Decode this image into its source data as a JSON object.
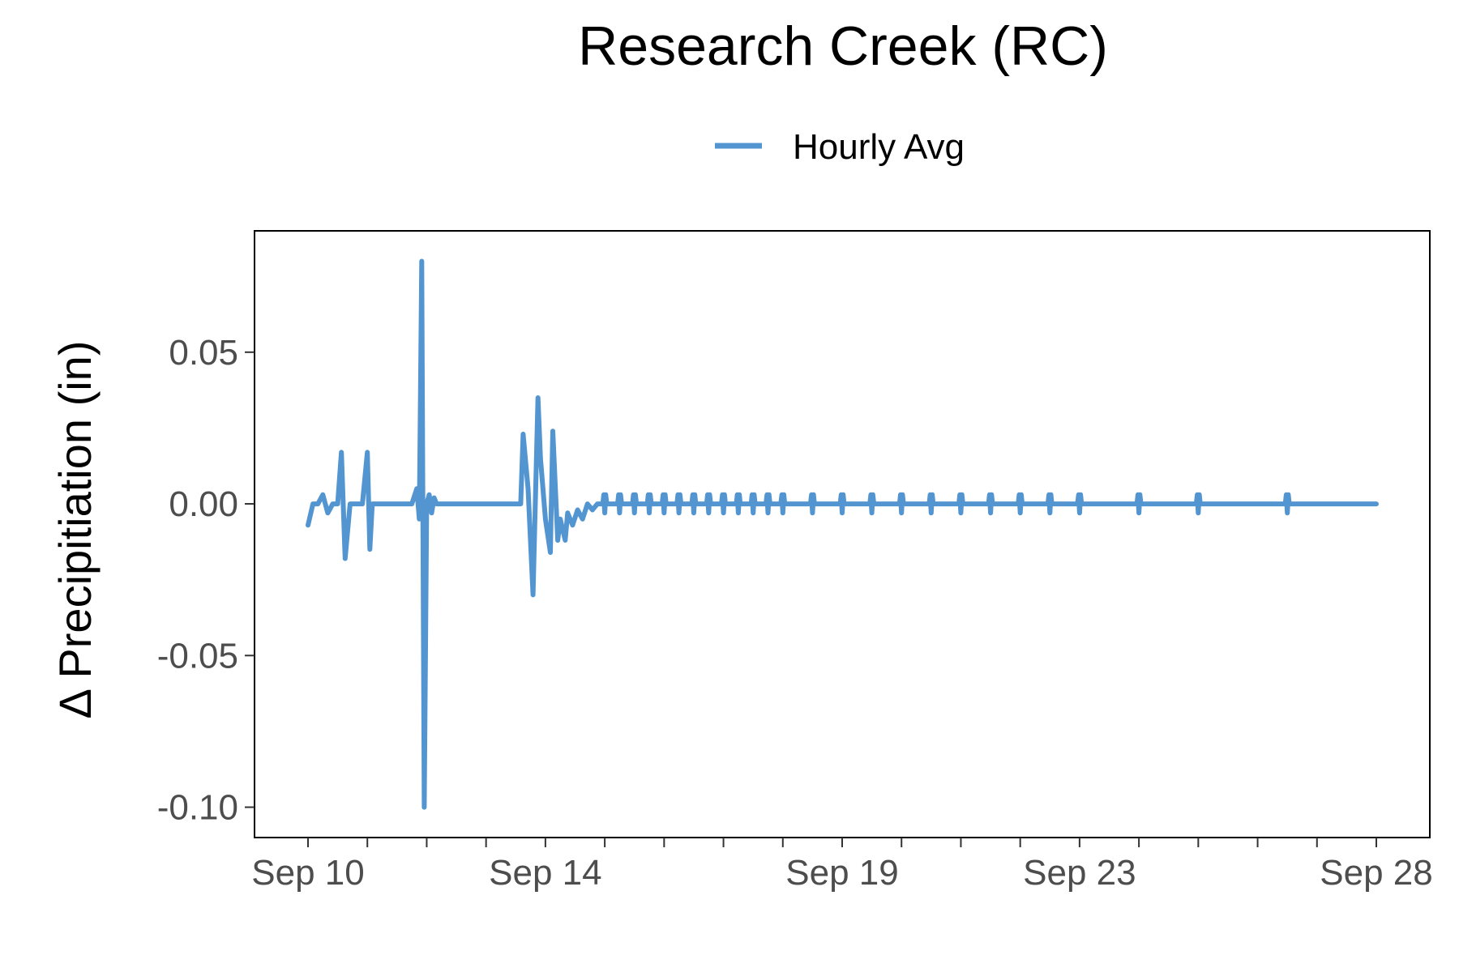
{
  "chart_data": {
    "type": "line",
    "title": "Research Creek (RC)",
    "xlabel": "",
    "ylabel": "Δ Precipitiation (in)",
    "legend": {
      "position": "top",
      "entries": [
        "Hourly Avg"
      ]
    },
    "grid": false,
    "xlim": [
      "Sep 10",
      "Sep 28"
    ],
    "ylim": [
      -0.11,
      0.09
    ],
    "xticks": [
      "Sep 10",
      "Sep 14",
      "Sep 19",
      "Sep 23",
      "Sep 28"
    ],
    "yticks": [
      "0.05",
      "0.00",
      "-0.05",
      "-0.10"
    ],
    "ytick_values": [
      0.05,
      0.0,
      -0.05,
      -0.1
    ],
    "series": [
      {
        "name": "Hourly Avg",
        "color": "#5395d0",
        "x": [
          "Sep 10 00:00",
          "Sep 10 02:00",
          "Sep 10 04:00",
          "Sep 10 06:00",
          "Sep 10 08:00",
          "Sep 10 10:00",
          "Sep 10 12:00",
          "Sep 10 13:30",
          "Sep 10 15:00",
          "Sep 10 17:00",
          "Sep 10 22:00",
          "Sep 11 00:00",
          "Sep 11 01:00",
          "Sep 11 02:00",
          "Sep 11 03:00",
          "Sep 11 04:00",
          "Sep 11 18:00",
          "Sep 11 20:00",
          "Sep 11 21:00",
          "Sep 11 22:00",
          "Sep 11 23:00",
          "Sep 12 00:00",
          "Sep 12 01:00",
          "Sep 12 02:00",
          "Sep 12 03:00",
          "Sep 12 04:00",
          "Sep 12 05:00",
          "Sep 12 06:00",
          "Sep 12 07:00",
          "Sep 13 14:00",
          "Sep 13 15:00",
          "Sep 13 17:00",
          "Sep 13 19:00",
          "Sep 13 21:00",
          "Sep 13 22:00",
          "Sep 14 00:00",
          "Sep 14 02:00",
          "Sep 14 03:00",
          "Sep 14 05:00",
          "Sep 14 06:00",
          "Sep 14 08:00",
          "Sep 14 09:00",
          "Sep 14 11:00",
          "Sep 14 13:00",
          "Sep 14 15:00",
          "Sep 14 17:00",
          "Sep 14 19:00",
          "Sep 14 21:00",
          "Sep 14 23:00",
          "Sep 28 00:00"
        ],
        "y": [
          -0.007,
          0.0,
          0.0,
          0.003,
          -0.003,
          0.0,
          0.0,
          0.017,
          -0.018,
          0.0,
          0.0,
          0.017,
          -0.015,
          0.0,
          0.0,
          0.0,
          0.0,
          0.005,
          -0.005,
          0.08,
          -0.1,
          0.0,
          0.003,
          -0.003,
          0.002,
          0.0,
          0.0,
          0.0,
          0.0,
          0.0,
          0.023,
          0.005,
          -0.03,
          0.035,
          0.015,
          -0.005,
          -0.016,
          0.024,
          -0.012,
          -0.005,
          -0.012,
          -0.003,
          -0.007,
          -0.002,
          -0.005,
          0.0,
          -0.002,
          0.0,
          0.0,
          0.0
        ],
        "oscillation_times": [
          "Sep 15 00:00",
          "Sep 15 06:00",
          "Sep 15 12:00",
          "Sep 15 18:00",
          "Sep 16 00:00",
          "Sep 16 06:00",
          "Sep 16 12:00",
          "Sep 16 18:00",
          "Sep 17 00:00",
          "Sep 17 06:00",
          "Sep 17 12:00",
          "Sep 17 18:00",
          "Sep 18 00:00",
          "Sep 18 12:00",
          "Sep 19 00:00",
          "Sep 19 12:00",
          "Sep 20 00:00",
          "Sep 20 12:00",
          "Sep 21 00:00",
          "Sep 21 12:00",
          "Sep 22 00:00",
          "Sep 22 12:00",
          "Sep 23 00:00",
          "Sep 24 00:00",
          "Sep 25 00:00",
          "Sep 26 12:00"
        ],
        "oscillation_amplitude": 0.003
      }
    ]
  }
}
